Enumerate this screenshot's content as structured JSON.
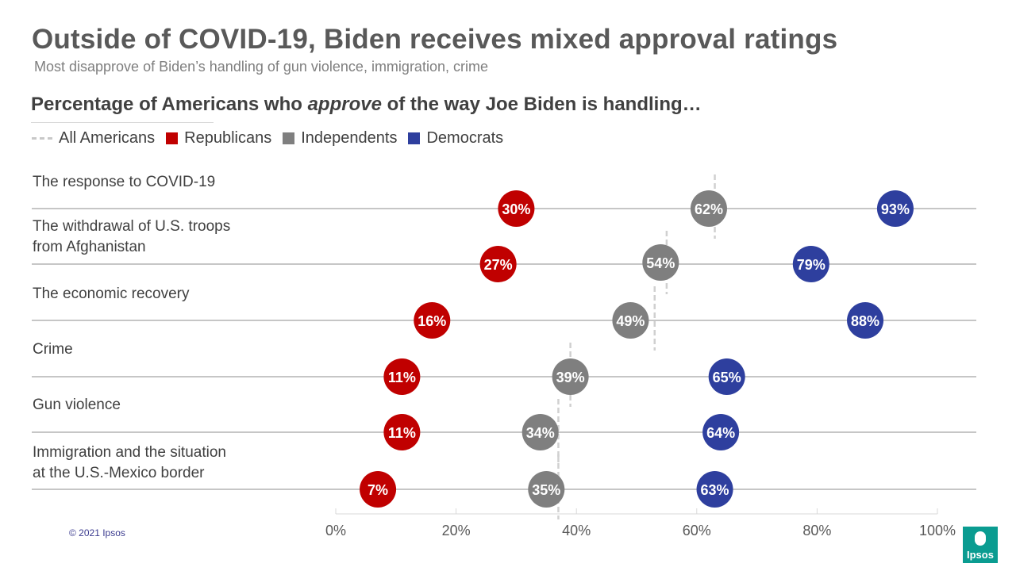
{
  "header": {
    "title": "Outside of COVID-19, Biden receives mixed approval ratings",
    "subtitle": "Most disapprove of Biden’s handling of gun violence, immigration, crime"
  },
  "chart_data": {
    "type": "scatter",
    "title_pre": "Percentage of Americans who ",
    "title_em": "approve",
    "title_post": " of the way Joe Biden is handling…",
    "legend": {
      "all": "All Americans",
      "rep": "Republicans",
      "ind": "Independents",
      "dem": "Democrats"
    },
    "colors": {
      "rep": "#c00000",
      "ind": "#7f7f7f",
      "dem": "#2e3f9e",
      "all": "#d0d0d0"
    },
    "xlim": [
      0,
      100
    ],
    "xticks": [
      "0%",
      "20%",
      "40%",
      "60%",
      "80%",
      "100%"
    ],
    "xtick_values": [
      0,
      20,
      40,
      60,
      80,
      100
    ],
    "categories": [
      "The response to COVID-19",
      "The withdrawal of U.S. troops from Afghanistan",
      "The economic recovery",
      "Crime",
      "Gun violence",
      "Immigration and the situation at the U.S.-Mexico border"
    ],
    "category_lines": [
      [
        "The response to COVID-19"
      ],
      [
        "The withdrawal of U.S. troops",
        "from Afghanistan"
      ],
      [
        "The economic recovery"
      ],
      [
        "Crime"
      ],
      [
        "Gun violence"
      ],
      [
        "Immigration and the situation",
        "at the U.S.-Mexico border"
      ]
    ],
    "series": [
      {
        "key": "rep",
        "name": "Republicans",
        "values": [
          30,
          27,
          16,
          11,
          11,
          7
        ],
        "labels": [
          "30%",
          "27%",
          "16%",
          "11%",
          "11%",
          "7%"
        ]
      },
      {
        "key": "ind",
        "name": "Independents",
        "values": [
          62,
          54,
          49,
          39,
          34,
          35
        ],
        "labels": [
          "62%",
          "54%",
          "49%",
          "39%",
          "34%",
          "35%"
        ]
      },
      {
        "key": "dem",
        "name": "Democrats",
        "values": [
          93,
          79,
          88,
          65,
          64,
          63
        ],
        "labels": [
          "93%",
          "79%",
          "88%",
          "65%",
          "64%",
          "63%"
        ]
      }
    ],
    "all_americans": [
      63,
      55,
      53,
      39,
      37,
      37
    ]
  },
  "footer": {
    "copyright": "© 2021 Ipsos",
    "logo_text": "Ipsos"
  }
}
